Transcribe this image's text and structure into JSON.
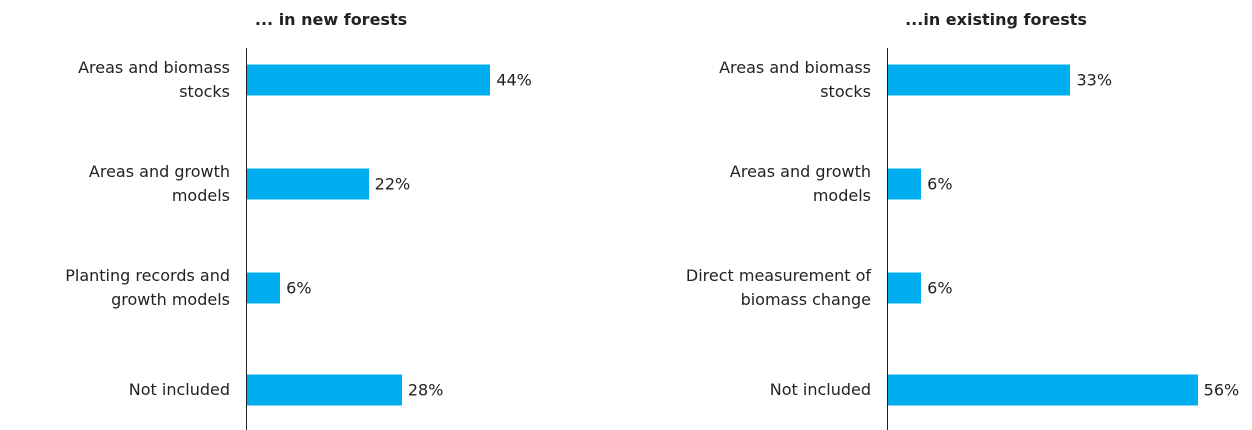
{
  "chart_data": [
    {
      "type": "bar",
      "orientation": "horizontal",
      "title": "... in new forests",
      "categories": [
        "Areas and biomass\nstocks",
        "Areas and growth\nmodels",
        "Planting records and\ngrowth models",
        "Not included"
      ],
      "values": [
        44,
        22,
        6,
        28
      ],
      "value_labels": [
        "44%",
        "22%",
        "6%",
        "28%"
      ],
      "color": "#00aeef"
    },
    {
      "type": "bar",
      "orientation": "horizontal",
      "title": "...in existing forests",
      "categories": [
        "Areas and biomass\nstocks",
        "Areas and growth\nmodels",
        "Direct measurement of\nbiomass change",
        "Not included"
      ],
      "values": [
        33,
        6,
        6,
        56
      ],
      "value_labels": [
        "33%",
        "6%",
        "6%",
        "56%"
      ],
      "color": "#00aeef"
    }
  ]
}
